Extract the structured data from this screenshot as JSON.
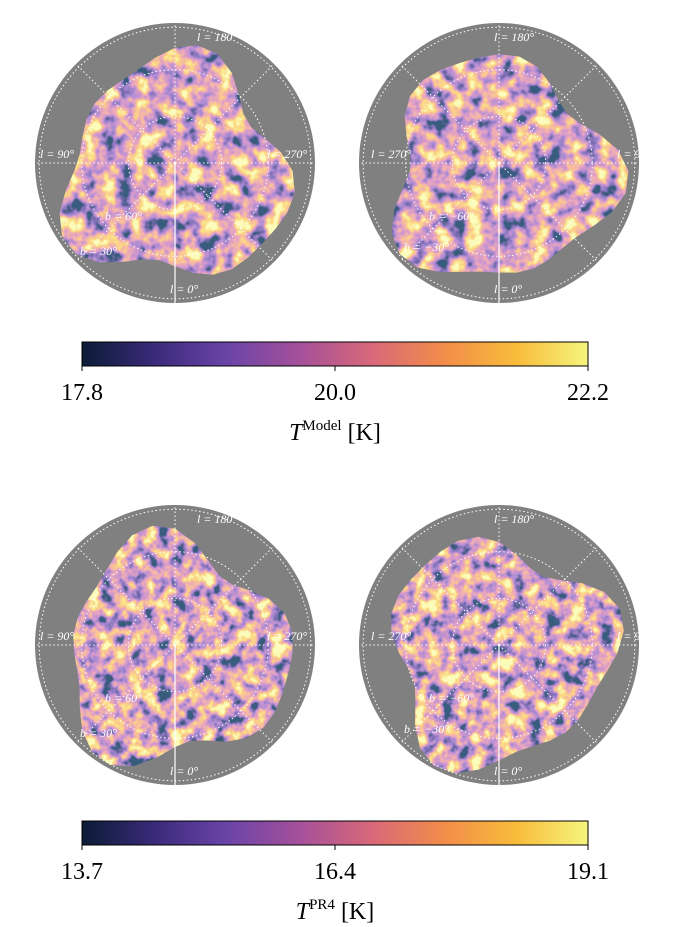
{
  "colormap": [
    "#0b1b35",
    "#3a2a7a",
    "#6a44a8",
    "#a4509a",
    "#d8687a",
    "#f28c4a",
    "#f8bb3a",
    "#f5f57e"
  ],
  "panels": [
    {
      "maps": [
        {
          "labels": [
            "l = 180°",
            "l = 90°",
            "l = 270°",
            "b = 60°",
            "b = 30°",
            "l = 0°"
          ]
        },
        {
          "labels": [
            "l = 180°",
            "l = 270°",
            "l = 90°",
            "b = −60°",
            "b = −30°",
            "l = 0°"
          ]
        }
      ],
      "colorbar": {
        "lim": [
          17.8,
          22.2
        ],
        "ticks": [
          17.8,
          {
            "value": 20,
            "label": "20.0"
          },
          22.2
        ],
        "label": {
          "symbol": "T",
          "superscript": "Model",
          "unit": "[K]"
        }
      }
    },
    {
      "maps": [
        {
          "labels": [
            "l = 180°",
            "l = 90°",
            "l = 270°",
            "b = 60°",
            "b = 30°",
            "l = 0°"
          ]
        },
        {
          "labels": [
            "l = 180°",
            "l = 270°",
            "l = 90°",
            "b = −60°",
            "b = −30°",
            "l = 0°"
          ]
        }
      ],
      "colorbar": {
        "lim": [
          13.7,
          19.1
        ],
        "ticks": [
          13.7,
          16.4,
          19.1
        ],
        "label": {
          "symbol": "T",
          "superscript": "PR4",
          "unit": "[K]"
        }
      }
    }
  ]
}
